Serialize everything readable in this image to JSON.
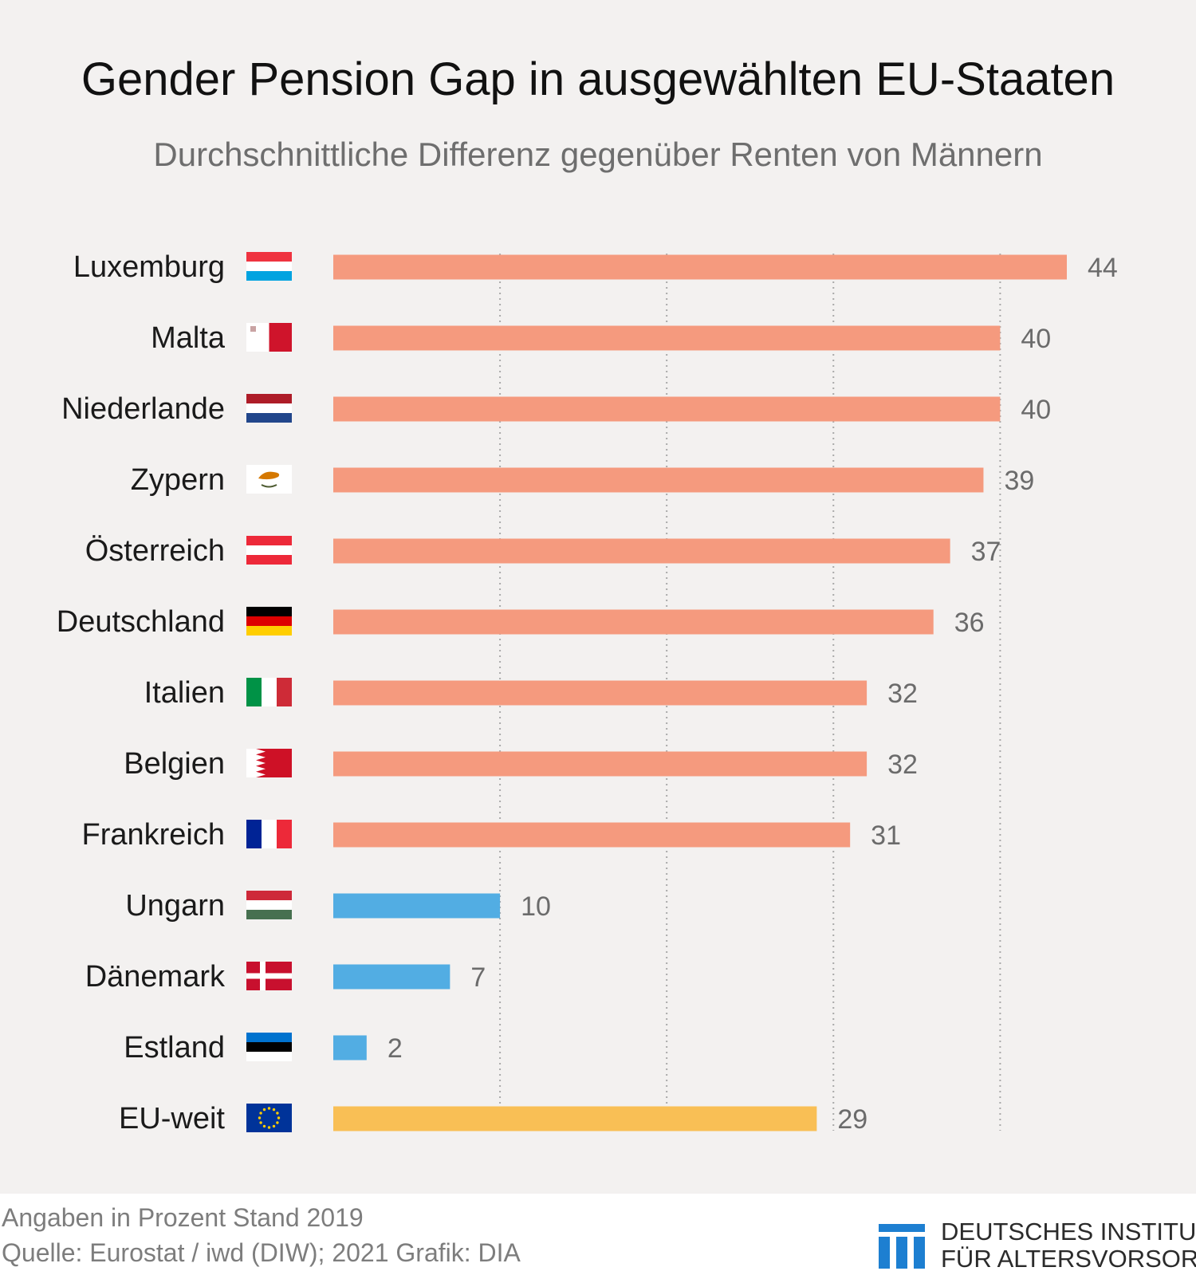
{
  "chart_data": {
    "type": "bar",
    "orientation": "horizontal",
    "title": "Gender Pension Gap in ausgewählten EU-Staaten",
    "subtitle": "Durchschnittliche Differenz gegenüber Renten von Männern",
    "categories": [
      "Luxemburg",
      "Malta",
      "Niederlande",
      "Zypern",
      "Österreich",
      "Deutschland",
      "Italien",
      "Belgien",
      "Frankreich",
      "Ungarn",
      "Dänemark",
      "Estland",
      "EU-weit"
    ],
    "values": [
      44,
      40,
      40,
      39,
      37,
      36,
      32,
      32,
      31,
      10,
      7,
      2,
      29
    ],
    "value_labels": [
      "44",
      "40",
      "40",
      "39",
      "37",
      "36",
      "32",
      "32",
      "31",
      "10",
      "7",
      "2",
      "29"
    ],
    "flags": [
      "luxembourg-flag-icon",
      "malta-flag-icon",
      "netherlands-flag-icon",
      "cyprus-flag-icon",
      "austria-flag-icon",
      "germany-flag-icon",
      "italy-flag-icon",
      "bahrain-style-flag-icon",
      "france-flag-icon",
      "hungary-flag-icon",
      "denmark-flag-icon",
      "estonia-flag-icon",
      "eu-flag-icon"
    ],
    "bar_colors": [
      "#f59a7e",
      "#f59a7e",
      "#f59a7e",
      "#f59a7e",
      "#f59a7e",
      "#f59a7e",
      "#f59a7e",
      "#f59a7e",
      "#f59a7e",
      "#52ade3",
      "#52ade3",
      "#52ade3",
      "#f9bf55"
    ],
    "xlim": [
      0,
      44
    ],
    "gridlines_at": [
      10,
      20,
      30,
      40
    ],
    "grid": "dotted-vertical",
    "legend": "none"
  },
  "footer": {
    "note_line1": "Angaben in Prozent  Stand 2019",
    "note_line2": "Quelle: Eurostat / iwd (DIW); 2021  Grafik: DIA",
    "org_line1": "DEUTSCHES INSTITUT",
    "org_line2": "FÜR ALTERSVORSORGE",
    "logo_color": "#1d7fd1"
  }
}
